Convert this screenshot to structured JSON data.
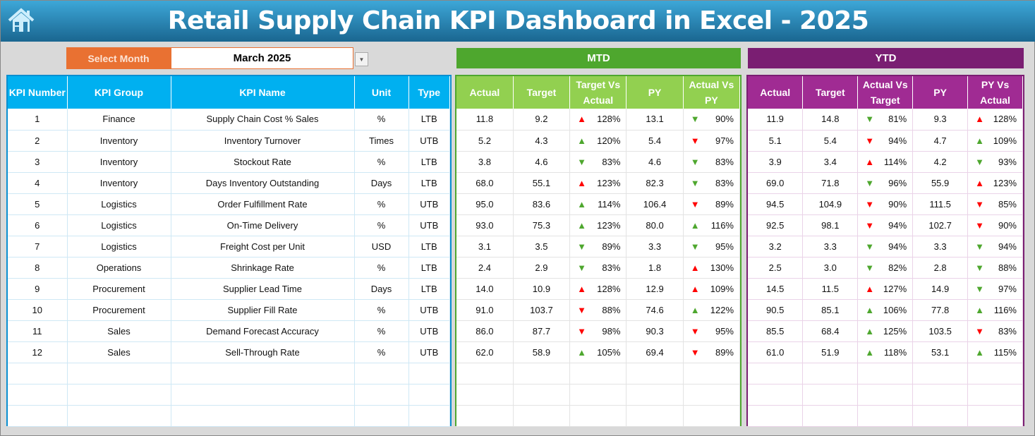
{
  "header": {
    "title": "Retail Supply Chain KPI Dashboard in Excel - 2025",
    "home_icon": "home-icon"
  },
  "filter": {
    "label": "Select Month",
    "value": "March 2025"
  },
  "sections": {
    "mtd": "MTD",
    "ytd": "YTD"
  },
  "colors": {
    "red": "#ff0000",
    "green": "#4ea72e",
    "left_header": "#00b0f0",
    "mtd_header": "#92d050",
    "ytd_header": "#a02b93"
  },
  "left_columns": [
    "KPI Number",
    "KPI Group",
    "KPI Name",
    "Unit",
    "Type"
  ],
  "mtd_columns": [
    "Actual",
    "Target",
    "Target Vs Actual",
    "PY",
    "Actual Vs PY"
  ],
  "ytd_columns": [
    "Actual",
    "Target",
    "Actual Vs Target",
    "PY",
    "PY Vs Actual"
  ],
  "rows": [
    {
      "num": "1",
      "group": "Finance",
      "name": "Supply Chain Cost % Sales",
      "unit": "%",
      "type": "LTB",
      "mtd": [
        "11.8",
        "9.2",
        [
          "up",
          "red",
          "128%"
        ],
        "13.1",
        [
          "down",
          "green",
          "90%"
        ]
      ],
      "ytd": [
        "11.9",
        "14.8",
        [
          "down",
          "green",
          "81%"
        ],
        "9.3",
        [
          "up",
          "red",
          "128%"
        ]
      ]
    },
    {
      "num": "2",
      "group": "Inventory",
      "name": "Inventory Turnover",
      "unit": "Times",
      "type": "UTB",
      "mtd": [
        "5.2",
        "4.3",
        [
          "up",
          "green",
          "120%"
        ],
        "5.4",
        [
          "down",
          "red",
          "97%"
        ]
      ],
      "ytd": [
        "5.1",
        "5.4",
        [
          "down",
          "red",
          "94%"
        ],
        "4.7",
        [
          "up",
          "green",
          "109%"
        ]
      ]
    },
    {
      "num": "3",
      "group": "Inventory",
      "name": "Stockout Rate",
      "unit": "%",
      "type": "LTB",
      "mtd": [
        "3.8",
        "4.6",
        [
          "down",
          "green",
          "83%"
        ],
        "4.6",
        [
          "down",
          "green",
          "83%"
        ]
      ],
      "ytd": [
        "3.9",
        "3.4",
        [
          "up",
          "red",
          "114%"
        ],
        "4.2",
        [
          "down",
          "green",
          "93%"
        ]
      ]
    },
    {
      "num": "4",
      "group": "Inventory",
      "name": "Days Inventory Outstanding",
      "unit": "Days",
      "type": "LTB",
      "mtd": [
        "68.0",
        "55.1",
        [
          "up",
          "red",
          "123%"
        ],
        "82.3",
        [
          "down",
          "green",
          "83%"
        ]
      ],
      "ytd": [
        "69.0",
        "71.8",
        [
          "down",
          "green",
          "96%"
        ],
        "55.9",
        [
          "up",
          "red",
          "123%"
        ]
      ]
    },
    {
      "num": "5",
      "group": "Logistics",
      "name": "Order Fulfillment Rate",
      "unit": "%",
      "type": "UTB",
      "mtd": [
        "95.0",
        "83.6",
        [
          "up",
          "green",
          "114%"
        ],
        "106.4",
        [
          "down",
          "red",
          "89%"
        ]
      ],
      "ytd": [
        "94.5",
        "104.9",
        [
          "down",
          "red",
          "90%"
        ],
        "111.5",
        [
          "down",
          "red",
          "85%"
        ]
      ]
    },
    {
      "num": "6",
      "group": "Logistics",
      "name": "On-Time Delivery",
      "unit": "%",
      "type": "UTB",
      "mtd": [
        "93.0",
        "75.3",
        [
          "up",
          "green",
          "123%"
        ],
        "80.0",
        [
          "up",
          "green",
          "116%"
        ]
      ],
      "ytd": [
        "92.5",
        "98.1",
        [
          "down",
          "red",
          "94%"
        ],
        "102.7",
        [
          "down",
          "red",
          "90%"
        ]
      ]
    },
    {
      "num": "7",
      "group": "Logistics",
      "name": "Freight Cost per Unit",
      "unit": "USD",
      "type": "LTB",
      "mtd": [
        "3.1",
        "3.5",
        [
          "down",
          "green",
          "89%"
        ],
        "3.3",
        [
          "down",
          "green",
          "95%"
        ]
      ],
      "ytd": [
        "3.2",
        "3.3",
        [
          "down",
          "green",
          "94%"
        ],
        "3.3",
        [
          "down",
          "green",
          "94%"
        ]
      ]
    },
    {
      "num": "8",
      "group": "Operations",
      "name": "Shrinkage Rate",
      "unit": "%",
      "type": "LTB",
      "mtd": [
        "2.4",
        "2.9",
        [
          "down",
          "green",
          "83%"
        ],
        "1.8",
        [
          "up",
          "red",
          "130%"
        ]
      ],
      "ytd": [
        "2.5",
        "3.0",
        [
          "down",
          "green",
          "82%"
        ],
        "2.8",
        [
          "down",
          "green",
          "88%"
        ]
      ]
    },
    {
      "num": "9",
      "group": "Procurement",
      "name": "Supplier Lead Time",
      "unit": "Days",
      "type": "LTB",
      "mtd": [
        "14.0",
        "10.9",
        [
          "up",
          "red",
          "128%"
        ],
        "12.9",
        [
          "up",
          "red",
          "109%"
        ]
      ],
      "ytd": [
        "14.5",
        "11.5",
        [
          "up",
          "red",
          "127%"
        ],
        "14.9",
        [
          "down",
          "green",
          "97%"
        ]
      ]
    },
    {
      "num": "10",
      "group": "Procurement",
      "name": "Supplier Fill Rate",
      "unit": "%",
      "type": "UTB",
      "mtd": [
        "91.0",
        "103.7",
        [
          "down",
          "red",
          "88%"
        ],
        "74.6",
        [
          "up",
          "green",
          "122%"
        ]
      ],
      "ytd": [
        "90.5",
        "85.1",
        [
          "up",
          "green",
          "106%"
        ],
        "77.8",
        [
          "up",
          "green",
          "116%"
        ]
      ]
    },
    {
      "num": "11",
      "group": "Sales",
      "name": "Demand Forecast Accuracy",
      "unit": "%",
      "type": "UTB",
      "mtd": [
        "86.0",
        "87.7",
        [
          "down",
          "red",
          "98%"
        ],
        "90.3",
        [
          "down",
          "red",
          "95%"
        ]
      ],
      "ytd": [
        "85.5",
        "68.4",
        [
          "up",
          "green",
          "125%"
        ],
        "103.5",
        [
          "down",
          "red",
          "83%"
        ]
      ]
    },
    {
      "num": "12",
      "group": "Sales",
      "name": "Sell-Through Rate",
      "unit": "%",
      "type": "UTB",
      "mtd": [
        "62.0",
        "58.9",
        [
          "up",
          "green",
          "105%"
        ],
        "69.4",
        [
          "down",
          "red",
          "89%"
        ]
      ],
      "ytd": [
        "61.0",
        "51.9",
        [
          "up",
          "green",
          "118%"
        ],
        "53.1",
        [
          "up",
          "green",
          "115%"
        ]
      ]
    }
  ]
}
